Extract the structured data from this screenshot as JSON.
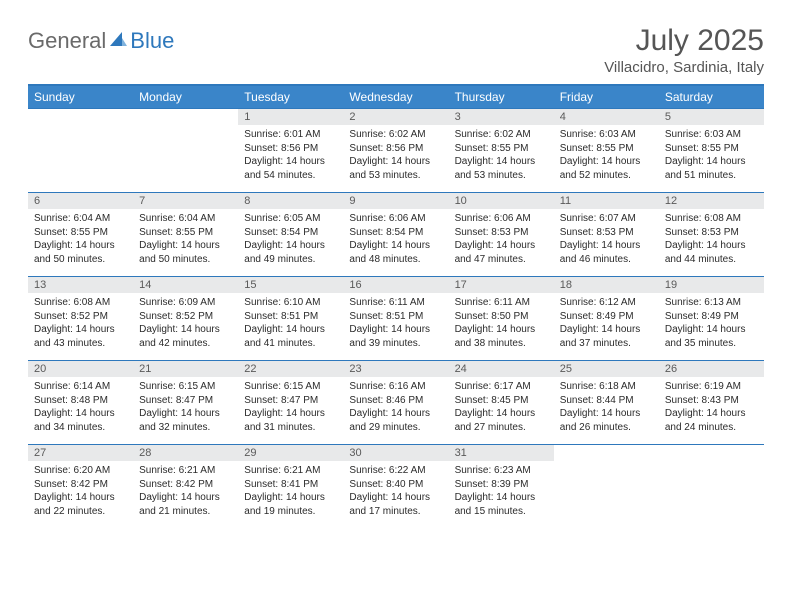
{
  "logo": {
    "text1": "General",
    "text2": "Blue"
  },
  "title": "July 2025",
  "subtitle": "Villacidro, Sardinia, Italy",
  "colors": {
    "header_bg": "#3a85c9",
    "rule": "#2e78bc",
    "daynum_bg": "#e8e9ea",
    "text": "#333333",
    "title": "#555555"
  },
  "weekdays": [
    "Sunday",
    "Monday",
    "Tuesday",
    "Wednesday",
    "Thursday",
    "Friday",
    "Saturday"
  ],
  "weeks": [
    [
      null,
      null,
      {
        "n": "1",
        "sr": "Sunrise: 6:01 AM",
        "ss": "Sunset: 8:56 PM",
        "dl": "Daylight: 14 hours and 54 minutes."
      },
      {
        "n": "2",
        "sr": "Sunrise: 6:02 AM",
        "ss": "Sunset: 8:56 PM",
        "dl": "Daylight: 14 hours and 53 minutes."
      },
      {
        "n": "3",
        "sr": "Sunrise: 6:02 AM",
        "ss": "Sunset: 8:55 PM",
        "dl": "Daylight: 14 hours and 53 minutes."
      },
      {
        "n": "4",
        "sr": "Sunrise: 6:03 AM",
        "ss": "Sunset: 8:55 PM",
        "dl": "Daylight: 14 hours and 52 minutes."
      },
      {
        "n": "5",
        "sr": "Sunrise: 6:03 AM",
        "ss": "Sunset: 8:55 PM",
        "dl": "Daylight: 14 hours and 51 minutes."
      }
    ],
    [
      {
        "n": "6",
        "sr": "Sunrise: 6:04 AM",
        "ss": "Sunset: 8:55 PM",
        "dl": "Daylight: 14 hours and 50 minutes."
      },
      {
        "n": "7",
        "sr": "Sunrise: 6:04 AM",
        "ss": "Sunset: 8:55 PM",
        "dl": "Daylight: 14 hours and 50 minutes."
      },
      {
        "n": "8",
        "sr": "Sunrise: 6:05 AM",
        "ss": "Sunset: 8:54 PM",
        "dl": "Daylight: 14 hours and 49 minutes."
      },
      {
        "n": "9",
        "sr": "Sunrise: 6:06 AM",
        "ss": "Sunset: 8:54 PM",
        "dl": "Daylight: 14 hours and 48 minutes."
      },
      {
        "n": "10",
        "sr": "Sunrise: 6:06 AM",
        "ss": "Sunset: 8:53 PM",
        "dl": "Daylight: 14 hours and 47 minutes."
      },
      {
        "n": "11",
        "sr": "Sunrise: 6:07 AM",
        "ss": "Sunset: 8:53 PM",
        "dl": "Daylight: 14 hours and 46 minutes."
      },
      {
        "n": "12",
        "sr": "Sunrise: 6:08 AM",
        "ss": "Sunset: 8:53 PM",
        "dl": "Daylight: 14 hours and 44 minutes."
      }
    ],
    [
      {
        "n": "13",
        "sr": "Sunrise: 6:08 AM",
        "ss": "Sunset: 8:52 PM",
        "dl": "Daylight: 14 hours and 43 minutes."
      },
      {
        "n": "14",
        "sr": "Sunrise: 6:09 AM",
        "ss": "Sunset: 8:52 PM",
        "dl": "Daylight: 14 hours and 42 minutes."
      },
      {
        "n": "15",
        "sr": "Sunrise: 6:10 AM",
        "ss": "Sunset: 8:51 PM",
        "dl": "Daylight: 14 hours and 41 minutes."
      },
      {
        "n": "16",
        "sr": "Sunrise: 6:11 AM",
        "ss": "Sunset: 8:51 PM",
        "dl": "Daylight: 14 hours and 39 minutes."
      },
      {
        "n": "17",
        "sr": "Sunrise: 6:11 AM",
        "ss": "Sunset: 8:50 PM",
        "dl": "Daylight: 14 hours and 38 minutes."
      },
      {
        "n": "18",
        "sr": "Sunrise: 6:12 AM",
        "ss": "Sunset: 8:49 PM",
        "dl": "Daylight: 14 hours and 37 minutes."
      },
      {
        "n": "19",
        "sr": "Sunrise: 6:13 AM",
        "ss": "Sunset: 8:49 PM",
        "dl": "Daylight: 14 hours and 35 minutes."
      }
    ],
    [
      {
        "n": "20",
        "sr": "Sunrise: 6:14 AM",
        "ss": "Sunset: 8:48 PM",
        "dl": "Daylight: 14 hours and 34 minutes."
      },
      {
        "n": "21",
        "sr": "Sunrise: 6:15 AM",
        "ss": "Sunset: 8:47 PM",
        "dl": "Daylight: 14 hours and 32 minutes."
      },
      {
        "n": "22",
        "sr": "Sunrise: 6:15 AM",
        "ss": "Sunset: 8:47 PM",
        "dl": "Daylight: 14 hours and 31 minutes."
      },
      {
        "n": "23",
        "sr": "Sunrise: 6:16 AM",
        "ss": "Sunset: 8:46 PM",
        "dl": "Daylight: 14 hours and 29 minutes."
      },
      {
        "n": "24",
        "sr": "Sunrise: 6:17 AM",
        "ss": "Sunset: 8:45 PM",
        "dl": "Daylight: 14 hours and 27 minutes."
      },
      {
        "n": "25",
        "sr": "Sunrise: 6:18 AM",
        "ss": "Sunset: 8:44 PM",
        "dl": "Daylight: 14 hours and 26 minutes."
      },
      {
        "n": "26",
        "sr": "Sunrise: 6:19 AM",
        "ss": "Sunset: 8:43 PM",
        "dl": "Daylight: 14 hours and 24 minutes."
      }
    ],
    [
      {
        "n": "27",
        "sr": "Sunrise: 6:20 AM",
        "ss": "Sunset: 8:42 PM",
        "dl": "Daylight: 14 hours and 22 minutes."
      },
      {
        "n": "28",
        "sr": "Sunrise: 6:21 AM",
        "ss": "Sunset: 8:42 PM",
        "dl": "Daylight: 14 hours and 21 minutes."
      },
      {
        "n": "29",
        "sr": "Sunrise: 6:21 AM",
        "ss": "Sunset: 8:41 PM",
        "dl": "Daylight: 14 hours and 19 minutes."
      },
      {
        "n": "30",
        "sr": "Sunrise: 6:22 AM",
        "ss": "Sunset: 8:40 PM",
        "dl": "Daylight: 14 hours and 17 minutes."
      },
      {
        "n": "31",
        "sr": "Sunrise: 6:23 AM",
        "ss": "Sunset: 8:39 PM",
        "dl": "Daylight: 14 hours and 15 minutes."
      },
      null,
      null
    ]
  ]
}
